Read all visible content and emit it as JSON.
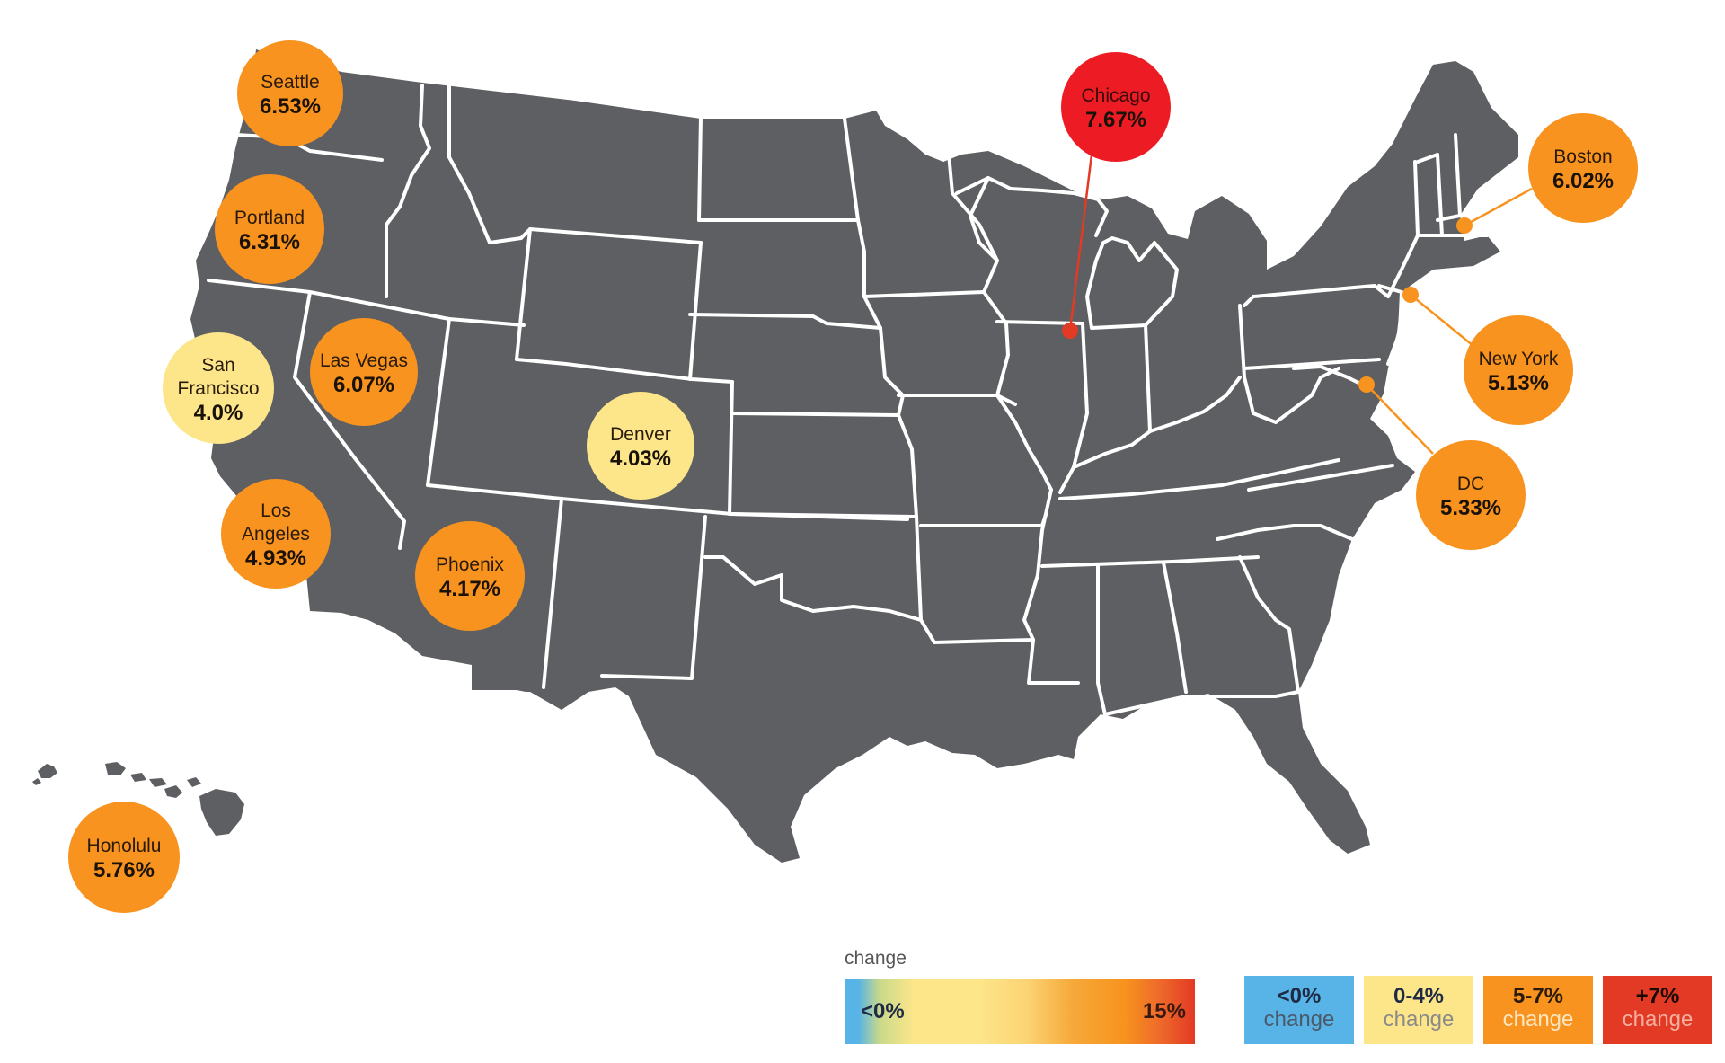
{
  "colors": {
    "map_fill": "#5e5f62",
    "state_border": "#ffffff",
    "blue": "#58b4e6",
    "yellow": "#fde68a",
    "orange": "#f7931e",
    "red": "#e23a24",
    "chicago_red": "#ed1c24"
  },
  "cities": [
    {
      "id": "seattle",
      "name": "Seattle",
      "value": "6.53%",
      "bucket": "orange"
    },
    {
      "id": "portland",
      "name": "Portland",
      "value": "6.31%",
      "bucket": "orange"
    },
    {
      "id": "san-francisco",
      "name": "San Francisco",
      "value": "4.0%",
      "bucket": "yellow"
    },
    {
      "id": "las-vegas",
      "name": "Las Vegas",
      "value": "6.07%",
      "bucket": "orange"
    },
    {
      "id": "los-angeles",
      "name": "Los Angeles",
      "value": "4.93%",
      "bucket": "orange"
    },
    {
      "id": "phoenix",
      "name": "Phoenix",
      "value": "4.17%",
      "bucket": "orange"
    },
    {
      "id": "denver",
      "name": "Denver",
      "value": "4.03%",
      "bucket": "yellow"
    },
    {
      "id": "chicago",
      "name": "Chicago",
      "value": "7.67%",
      "bucket": "red"
    },
    {
      "id": "boston",
      "name": "Boston",
      "value": "6.02%",
      "bucket": "orange"
    },
    {
      "id": "new-york",
      "name": "New York",
      "value": "5.13%",
      "bucket": "orange"
    },
    {
      "id": "dc",
      "name": "DC",
      "value": "5.33%",
      "bucket": "orange"
    },
    {
      "id": "honolulu",
      "name": "Honolulu",
      "value": "5.76%",
      "bucket": "orange"
    }
  ],
  "legend": {
    "caption": "change",
    "gradient_min": "<0%",
    "gradient_max": "15%",
    "buckets": [
      {
        "range": "<0%",
        "word": "change",
        "color": "#58b4e6",
        "text_color": "#1f2a44",
        "word_color": "#4a5a6a"
      },
      {
        "range": "0-4%",
        "word": "change",
        "color": "#fde68a",
        "text_color": "#1f2a44",
        "word_color": "#8a8a8a"
      },
      {
        "range": "5-7%",
        "word": "change",
        "color": "#f7931e",
        "text_color": "#2a1a0a",
        "word_color": "#fde6c0"
      },
      {
        "range": "+7%",
        "word": "change",
        "color": "#e23a24",
        "text_color": "#1a0a05",
        "word_color": "#f6b0a0"
      }
    ]
  }
}
